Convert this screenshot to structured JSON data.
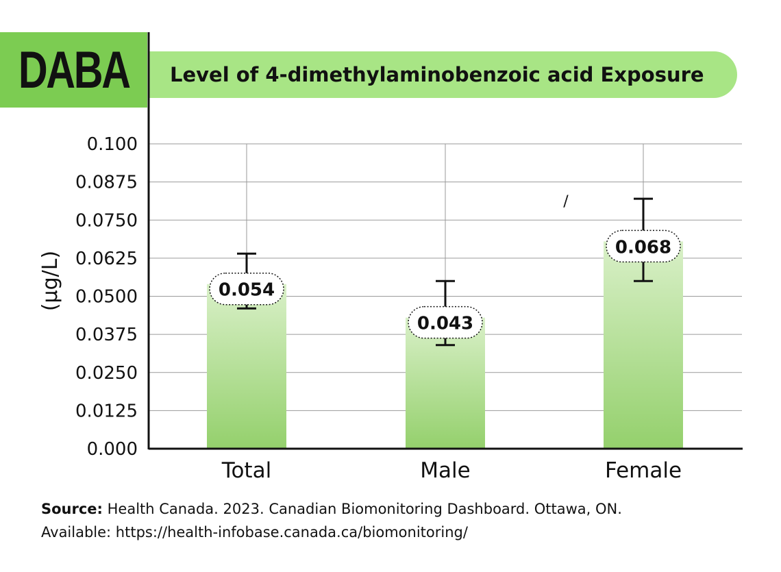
{
  "badge": {
    "label": "DABA"
  },
  "header": {
    "title": "Level of 4-dimethylaminobenzoic acid Exposure"
  },
  "colors": {
    "accent": "#7ccc52",
    "title_bar": "#a8e585",
    "bar_top": "#d9f0c8",
    "bar_bottom": "#94d06c"
  },
  "chart_data": {
    "type": "bar",
    "title": "Level of 4-dimethylaminobenzoic acid Exposure",
    "xlabel": "",
    "ylabel": "(µg/L)",
    "categories": [
      "Total",
      "Male",
      "Female"
    ],
    "values": [
      0.054,
      0.043,
      0.068
    ],
    "value_labels": [
      "0.054",
      "0.043",
      "0.068"
    ],
    "error_low": [
      0.046,
      0.034,
      0.055
    ],
    "error_high": [
      0.064,
      0.055,
      0.082
    ],
    "ylim": [
      0,
      0.1
    ],
    "yticks": [
      0,
      0.0125,
      0.025,
      0.0375,
      0.05,
      0.0625,
      0.075,
      0.0875,
      0.1
    ],
    "ytick_labels": [
      "0.000",
      "0.0125",
      "0.0250",
      "0.0375",
      "0.0500",
      "0.0625",
      "0.0750",
      "0.0875",
      "0.100"
    ],
    "grid": true,
    "annotations": [
      "/"
    ]
  },
  "source": {
    "label": "Source:",
    "text": " Health Canada. 2023. Canadian Biomonitoring Dashboard. Ottawa, ON.",
    "line2": "Available: https://health-infobase.canada.ca/biomonitoring/"
  }
}
